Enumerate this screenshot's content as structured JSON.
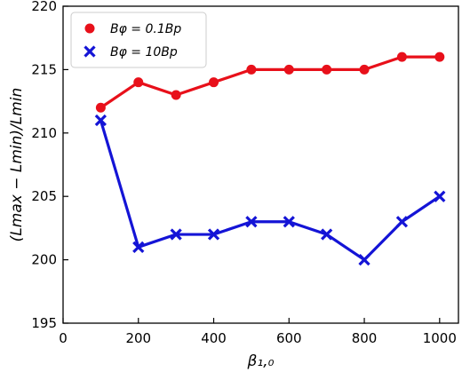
{
  "chart_data": {
    "type": "line",
    "xlabel": "β₁,₀",
    "ylabel": "(Lmax − Lmin)/Lmin",
    "xlim": [
      0,
      1050
    ],
    "ylim": [
      195,
      220
    ],
    "xticks": [
      0,
      200,
      400,
      600,
      800,
      1000
    ],
    "yticks": [
      195,
      200,
      205,
      210,
      215,
      220
    ],
    "grid": false,
    "legend_position": "top-left",
    "x": [
      100,
      200,
      300,
      400,
      500,
      600,
      700,
      800,
      900,
      1000
    ],
    "series": [
      {
        "name": "Bφ = 0.1Bp",
        "color": "#e8101a",
        "marker": "circle",
        "values": [
          212,
          214,
          213,
          214,
          215,
          215,
          215,
          215,
          216,
          216
        ]
      },
      {
        "name": "Bφ = 10Bp",
        "color": "#1414d6",
        "marker": "x",
        "values": [
          211,
          201,
          202,
          202,
          203,
          203,
          202,
          200,
          203,
          205
        ]
      }
    ]
  }
}
